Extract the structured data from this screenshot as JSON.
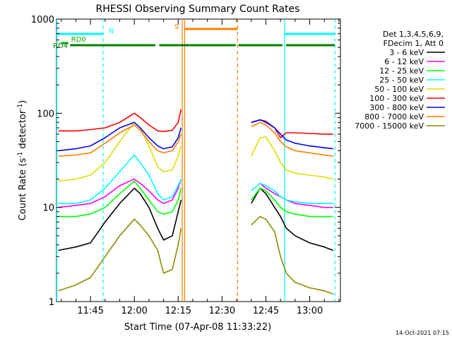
{
  "chart_data": {
    "type": "line",
    "title": "RHESSI Observing Summary Count Rates",
    "xlabel": "Start Time (07-Apr-08 11:33:22)",
    "ylabel": "Count Rate (s",
    "ylabel_sup": "-1",
    "ylabel_rest": " detector",
    "ylabel_sup2": "-1",
    "ylabel_close": ")",
    "y_scale": "log",
    "ylim": [
      1,
      1000
    ],
    "xlim_minutes": [
      693.37,
      790.5
    ],
    "x_ticks": [
      {
        "label": "11:45",
        "minutes": 705
      },
      {
        "label": "12:00",
        "minutes": 720
      },
      {
        "label": "12:15",
        "minutes": 735
      },
      {
        "label": "12:30",
        "minutes": 750
      },
      {
        "label": "12:45",
        "minutes": 765
      },
      {
        "label": "13:00",
        "minutes": 780
      }
    ],
    "y_ticks": [
      {
        "label": "1",
        "value": 1
      },
      {
        "label": "10",
        "value": 10
      },
      {
        "label": "100",
        "value": 100
      },
      {
        "label": "1000",
        "value": 1000
      }
    ],
    "timestamp": "14-Oct-2021 07:15",
    "legend": {
      "placement": "right",
      "header": [
        "Det 1,3,4,5,6,9,",
        "FDecim 1, Att 0"
      ]
    },
    "flags": [
      {
        "label": "N",
        "color": "#00ffff",
        "segments": [
          [
            693.5,
            709.3
          ],
          [
            771.4,
            788.6
          ]
        ]
      },
      {
        "label": "RD0",
        "color": "#00aa00",
        "segments": [
          [
            694.9,
            697.4
          ]
        ]
      },
      {
        "label": "S",
        "color": "#ff7f00",
        "segments": [
          [
            737.2,
            755.3
          ]
        ]
      },
      {
        "label": "RD4",
        "color": "#008000",
        "segments": [
          [
            698.0,
            727.2
          ],
          [
            728.5,
            754.7
          ],
          [
            755.6,
            770.7
          ],
          [
            771.9,
            788.6
          ]
        ]
      }
    ],
    "event_lines": [
      {
        "minutes": 693.5,
        "color": "#00ffff",
        "style": "solid"
      },
      {
        "minutes": 709.3,
        "color": "#00ffff",
        "style": "dashed"
      },
      {
        "minutes": 736.4,
        "color": "#ff7f00",
        "style": "solid"
      },
      {
        "minutes": 737.2,
        "color": "#ff7f00",
        "style": "solid"
      },
      {
        "minutes": 755.3,
        "color": "#ff7f00",
        "style": "dashed"
      },
      {
        "minutes": 771.4,
        "color": "#00ffff",
        "style": "solid"
      },
      {
        "minutes": 788.6,
        "color": "#00ffff",
        "style": "dashed"
      }
    ],
    "x": [
      694,
      700,
      705,
      710,
      715,
      720,
      722,
      725,
      728,
      730,
      733,
      735,
      736,
      757,
      760,
      763,
      765,
      768,
      770,
      772,
      775,
      780,
      785,
      788
    ],
    "series": [
      {
        "name": "3 - 6 keV",
        "color": "#000000",
        "values": [
          3.5,
          3.8,
          4.2,
          7,
          11,
          16,
          14,
          10,
          6,
          4.5,
          5,
          9,
          12,
          null,
          11,
          16,
          14,
          10,
          8,
          6,
          5,
          4.2,
          3.8,
          3.5
        ]
      },
      {
        "name": "6 - 12 keV",
        "color": "#ff00ff",
        "values": [
          10,
          10.5,
          11,
          13,
          17,
          20,
          18,
          15,
          12,
          11,
          12,
          16,
          20,
          null,
          15,
          18,
          16,
          14,
          13,
          12,
          11,
          10.5,
          10,
          10
        ]
      },
      {
        "name": "12 - 25 keV",
        "color": "#00ff00",
        "values": [
          8,
          8,
          8.5,
          10,
          14,
          19,
          16,
          12,
          9,
          8.5,
          9,
          12,
          16,
          null,
          12,
          16,
          15,
          12,
          10,
          9,
          8.5,
          8,
          8,
          8
        ]
      },
      {
        "name": "25 - 50 keV",
        "color": "#00ffff",
        "values": [
          11,
          11,
          12,
          16,
          24,
          36,
          30,
          22,
          14,
          12,
          13,
          17,
          20,
          null,
          15,
          18,
          17,
          15,
          13,
          12,
          11.5,
          11,
          11,
          11
        ]
      },
      {
        "name": "50 - 100 keV",
        "color": "#dddd00",
        "values": [
          19,
          20,
          22,
          30,
          50,
          80,
          70,
          45,
          27,
          24,
          25,
          35,
          45,
          null,
          35,
          55,
          56,
          40,
          30,
          25,
          23,
          22,
          21,
          20
        ]
      },
      {
        "name": "100 - 300 keV",
        "color": "#ff0000",
        "values": [
          65,
          65,
          67,
          70,
          80,
          100,
          90,
          75,
          65,
          64,
          66,
          80,
          110,
          null,
          80,
          85,
          82,
          70,
          55,
          62,
          62,
          61,
          60,
          60
        ]
      },
      {
        "name": "300 - 800 keV",
        "color": "#0000ff",
        "values": [
          40,
          42,
          45,
          55,
          70,
          80,
          70,
          55,
          45,
          42,
          44,
          55,
          70,
          null,
          80,
          85,
          80,
          70,
          60,
          52,
          48,
          45,
          43,
          42
        ]
      },
      {
        "name": "800 - 7000 keV",
        "color": "#ff7f00",
        "values": [
          35,
          36,
          38,
          48,
          62,
          75,
          66,
          50,
          40,
          38,
          40,
          50,
          60,
          null,
          72,
          80,
          75,
          62,
          50,
          44,
          40,
          38,
          36,
          35
        ]
      },
      {
        "name": "7000 - 15000 keV",
        "color": "#8b8b00",
        "values": [
          1.3,
          1.5,
          1.8,
          3,
          5,
          7.5,
          6.5,
          5,
          3.5,
          2,
          2.2,
          4,
          6,
          null,
          6.5,
          8,
          7.5,
          5.5,
          3,
          2,
          1.6,
          1.4,
          1.3,
          1.2
        ]
      }
    ]
  }
}
